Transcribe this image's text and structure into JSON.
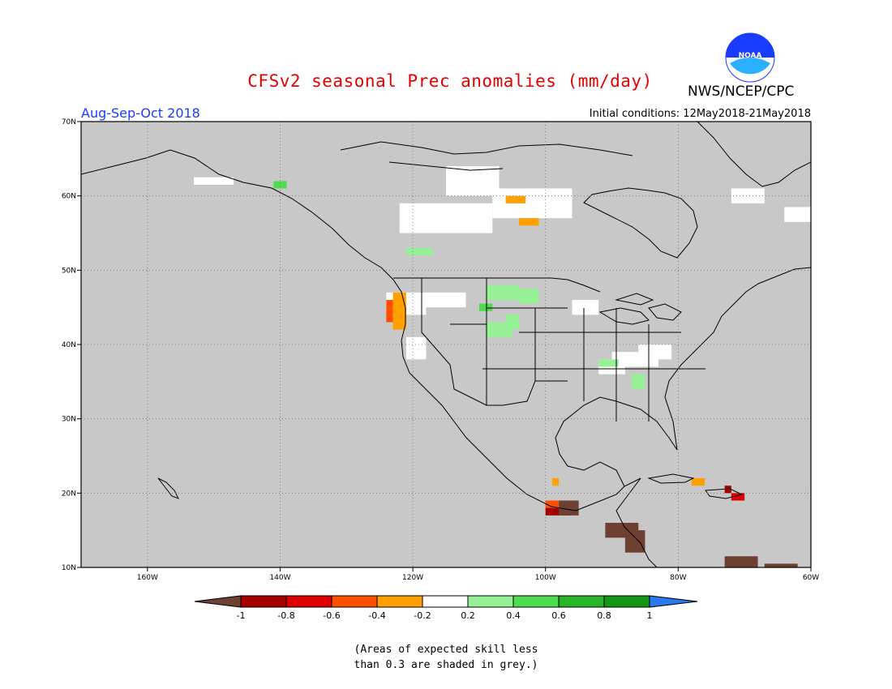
{
  "header": {
    "title": "CFSv2 seasonal Prec anomalies (mm/day)",
    "agency": "NWS/NCEP/CPC",
    "season": "Aug-Sep-Oct 2018",
    "initial_conditions": "Initial conditions: 12May2018-21May2018",
    "logo_text": "NOAA"
  },
  "map": {
    "background_color": "#c8c8c8",
    "land_line_color": "#000000",
    "lon_range": [
      -170,
      -60
    ],
    "lat_range": [
      10,
      70
    ],
    "lon_ticks": [
      {
        "value": -160,
        "label": "160W"
      },
      {
        "value": -140,
        "label": "140W"
      },
      {
        "value": -120,
        "label": "120W"
      },
      {
        "value": -100,
        "label": "100W"
      },
      {
        "value": -80,
        "label": "80W"
      },
      {
        "value": -60,
        "label": "60W"
      }
    ],
    "lat_ticks": [
      {
        "value": 10,
        "label": "10N"
      },
      {
        "value": 20,
        "label": "20N"
      },
      {
        "value": 30,
        "label": "30N"
      },
      {
        "value": 40,
        "label": "40N"
      },
      {
        "value": 50,
        "label": "50N"
      },
      {
        "value": 60,
        "label": "60N"
      },
      {
        "value": 70,
        "label": "70N"
      }
    ],
    "grid": "dotted"
  },
  "colorbar": {
    "labels": [
      "-1",
      "-0.8",
      "-0.6",
      "-0.4",
      "-0.2",
      "0.2",
      "0.4",
      "0.6",
      "0.8",
      "1"
    ],
    "colors": [
      "#6e4032",
      "#a50000",
      "#dc0000",
      "#ff5000",
      "#ffa000",
      "#ffffff",
      "#96f096",
      "#50dc50",
      "#28b428",
      "#149614",
      "#2878f0"
    ]
  },
  "anomaly_patches": [
    {
      "color": "#ffffff",
      "lon": -115,
      "lat": 60,
      "w": 8,
      "h": 4
    },
    {
      "color": "#ffffff",
      "lon": -108,
      "lat": 57,
      "w": 12,
      "h": 4
    },
    {
      "color": "#ffffff",
      "lon": -122,
      "lat": 55,
      "w": 14,
      "h": 4
    },
    {
      "color": "#ffffff",
      "lon": -153,
      "lat": 61.5,
      "w": 6,
      "h": 1
    },
    {
      "color": "#ffffff",
      "lon": -72,
      "lat": 59,
      "w": 5,
      "h": 2
    },
    {
      "color": "#ffffff",
      "lon": -64,
      "lat": 56.5,
      "w": 5,
      "h": 2
    },
    {
      "color": "#ffffff",
      "lon": -124,
      "lat": 44,
      "w": 6,
      "h": 3
    },
    {
      "color": "#ffffff",
      "lon": -118,
      "lat": 45,
      "w": 6,
      "h": 2
    },
    {
      "color": "#ffffff",
      "lon": -121,
      "lat": 38,
      "w": 3,
      "h": 3
    },
    {
      "color": "#ffffff",
      "lon": -96,
      "lat": 44,
      "w": 4,
      "h": 2
    },
    {
      "color": "#ffffff",
      "lon": -92,
      "lat": 36,
      "w": 4,
      "h": 2
    },
    {
      "color": "#ffffff",
      "lon": -90,
      "lat": 37,
      "w": 7,
      "h": 2
    },
    {
      "color": "#ffffff",
      "lon": -86,
      "lat": 38,
      "w": 5,
      "h": 2
    },
    {
      "color": "#96f096",
      "lon": -109,
      "lat": 46,
      "w": 5,
      "h": 2
    },
    {
      "color": "#96f096",
      "lon": -104,
      "lat": 45.5,
      "w": 3,
      "h": 2
    },
    {
      "color": "#96f096",
      "lon": -109,
      "lat": 41,
      "w": 4,
      "h": 2
    },
    {
      "color": "#96f096",
      "lon": -106,
      "lat": 42,
      "w": 2,
      "h": 2
    },
    {
      "color": "#96f096",
      "lon": -121,
      "lat": 52,
      "w": 4,
      "h": 1
    },
    {
      "color": "#96f096",
      "lon": -92,
      "lat": 37,
      "w": 3,
      "h": 1
    },
    {
      "color": "#96f096",
      "lon": -87,
      "lat": 34,
      "w": 2,
      "h": 2
    },
    {
      "color": "#50dc50",
      "lon": -110,
      "lat": 44.5,
      "w": 2,
      "h": 1
    },
    {
      "color": "#50dc50",
      "lon": -141,
      "lat": 61,
      "w": 2,
      "h": 1
    },
    {
      "color": "#ffa000",
      "lon": -123,
      "lat": 42,
      "w": 2,
      "h": 5
    },
    {
      "color": "#ffa000",
      "lon": -104,
      "lat": 56,
      "w": 3,
      "h": 1
    },
    {
      "color": "#ffa000",
      "lon": -106,
      "lat": 59,
      "w": 3,
      "h": 1
    },
    {
      "color": "#ffa000",
      "lon": -99,
      "lat": 21,
      "w": 1,
      "h": 1
    },
    {
      "color": "#ffa000",
      "lon": -78,
      "lat": 21,
      "w": 2,
      "h": 1
    },
    {
      "color": "#ff5000",
      "lon": -124,
      "lat": 43,
      "w": 1,
      "h": 3
    },
    {
      "color": "#ff5000",
      "lon": -100,
      "lat": 18,
      "w": 2,
      "h": 1
    },
    {
      "color": "#dc0000",
      "lon": -72,
      "lat": 19,
      "w": 2,
      "h": 1
    },
    {
      "color": "#a50000",
      "lon": -100,
      "lat": 17,
      "w": 4,
      "h": 1
    },
    {
      "color": "#a50000",
      "lon": -73,
      "lat": 20,
      "w": 1,
      "h": 1
    },
    {
      "color": "#6e4032",
      "lon": -98,
      "lat": 17,
      "w": 3,
      "h": 2
    },
    {
      "color": "#6e4032",
      "lon": -91,
      "lat": 14,
      "w": 5,
      "h": 2
    },
    {
      "color": "#6e4032",
      "lon": -88,
      "lat": 12,
      "w": 3,
      "h": 3
    },
    {
      "color": "#6e4032",
      "lon": -73,
      "lat": 10,
      "w": 5,
      "h": 1.5
    },
    {
      "color": "#6e4032",
      "lon": -67,
      "lat": 10,
      "w": 5,
      "h": 0.5
    }
  ],
  "footnote": {
    "line1": "(Areas of expected skill less",
    "line2": "than 0.3 are shaded in grey.)"
  }
}
